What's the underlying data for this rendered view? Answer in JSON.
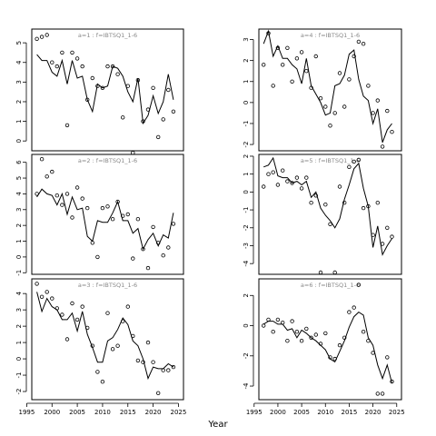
{
  "xlabel": "Year",
  "chart_data": [
    {
      "type": "line",
      "title": "a=1  :  f=IBTSQ1_1-6",
      "ylim": [
        -0.5,
        5.7
      ],
      "yticks": [
        0,
        1,
        2,
        3,
        4,
        5
      ],
      "xlim": [
        1996,
        2026
      ],
      "xticks": [
        1995,
        2000,
        2005,
        2010,
        2015,
        2020,
        2025
      ],
      "x": [
        1997,
        1998,
        1999,
        2000,
        2001,
        2002,
        2003,
        2004,
        2005,
        2006,
        2007,
        2008,
        2009,
        2010,
        2011,
        2012,
        2013,
        2014,
        2015,
        2016,
        2017,
        2018,
        2019,
        2020,
        2021,
        2022,
        2023,
        2024
      ],
      "line": [
        4.4,
        4.1,
        4.1,
        3.5,
        3.3,
        4.1,
        2.9,
        4.1,
        3.2,
        3.3,
        2.1,
        1.5,
        2.9,
        2.7,
        2.8,
        3.8,
        3.7,
        3.3,
        2.5,
        2.0,
        3.2,
        0.9,
        1.3,
        2.3,
        1.4,
        2.0,
        3.4,
        2.1
      ],
      "points": [
        5.2,
        5.3,
        5.4,
        4.0,
        3.8,
        4.5,
        0.8,
        4.5,
        4.2,
        3.8,
        2.1,
        3.2,
        2.8,
        2.7,
        3.8,
        3.8,
        3.4,
        1.2,
        2.8,
        -0.6,
        3.1,
        1.0,
        1.6,
        2.7,
        0.2,
        1.1,
        2.6,
        1.5
      ]
    },
    {
      "type": "line",
      "title": "a=4  :  f=IBTSQ1_1-6",
      "ylim": [
        -2.3,
        3.5
      ],
      "yticks": [
        -2,
        -1,
        0,
        1,
        2,
        3
      ],
      "xlim": [
        1996,
        2026
      ],
      "xticks": [
        1995,
        2000,
        2005,
        2010,
        2015,
        2020,
        2025
      ],
      "x": [
        1997,
        1998,
        1999,
        2000,
        2001,
        2002,
        2003,
        2004,
        2005,
        2006,
        2007,
        2008,
        2009,
        2010,
        2011,
        2012,
        2013,
        2014,
        2015,
        2016,
        2017,
        2018,
        2019,
        2020,
        2021,
        2022,
        2023,
        2024
      ],
      "line": [
        2.8,
        3.4,
        2.2,
        2.7,
        2.1,
        2.1,
        1.8,
        1.6,
        0.9,
        2.1,
        0.8,
        0.4,
        0.0,
        -0.6,
        -0.5,
        0.8,
        0.9,
        1.3,
        2.3,
        2.5,
        1.1,
        0.3,
        0.1,
        -1.0,
        -0.3,
        -1.9,
        -1.3,
        -1.0
      ],
      "points": [
        1.8,
        3.3,
        0.8,
        2.6,
        1.8,
        2.6,
        1.0,
        2.1,
        2.4,
        1.5,
        0.7,
        2.2,
        0.2,
        -0.2,
        -1.1,
        -0.5,
        1.4,
        -0.2,
        1.1,
        2.2,
        2.9,
        2.8,
        0.8,
        -0.5,
        0.1,
        -2.1,
        -0.4,
        -1.4
      ]
    },
    {
      "type": "line",
      "title": "a=2  :  f=IBTSQ1_1-6",
      "ylim": [
        -1.1,
        6.5
      ],
      "yticks": [
        -1,
        0,
        1,
        2,
        3,
        4,
        5,
        6
      ],
      "xlim": [
        1996,
        2026
      ],
      "xticks": [
        1995,
        2000,
        2005,
        2010,
        2015,
        2020,
        2025
      ],
      "x": [
        1997,
        1998,
        1999,
        2000,
        2001,
        2002,
        2003,
        2004,
        2005,
        2006,
        2007,
        2008,
        2009,
        2010,
        2011,
        2012,
        2013,
        2014,
        2015,
        2016,
        2017,
        2018,
        2019,
        2020,
        2021,
        2022,
        2023,
        2024
      ],
      "line": [
        3.8,
        4.3,
        4.0,
        3.9,
        3.3,
        4.0,
        2.7,
        3.8,
        3.0,
        3.1,
        1.3,
        1.0,
        2.3,
        2.2,
        2.2,
        2.8,
        3.5,
        2.3,
        2.3,
        1.5,
        1.8,
        0.5,
        1.1,
        1.5,
        0.7,
        1.4,
        1.2,
        2.8
      ],
      "points": [
        4.0,
        6.2,
        5.1,
        5.4,
        3.9,
        3.3,
        4.0,
        2.5,
        4.4,
        3.7,
        3.1,
        0.9,
        0.0,
        3.1,
        3.2,
        2.4,
        3.5,
        2.6,
        2.7,
        -0.1,
        2.4,
        0.5,
        -0.7,
        1.9,
        0.9,
        0.1,
        0.6,
        2.1
      ]
    },
    {
      "type": "line",
      "title": "a=5  :  f=IBTSQ1_1-6",
      "ylim": [
        -4.6,
        2.1
      ],
      "yticks": [
        -4,
        -3,
        -2,
        -1,
        0,
        1,
        2
      ],
      "xlim": [
        1996,
        2026
      ],
      "xticks": [
        1995,
        2000,
        2005,
        2010,
        2015,
        2020,
        2025
      ],
      "x": [
        1997,
        1998,
        1999,
        2000,
        2001,
        2002,
        2003,
        2004,
        2005,
        2006,
        2007,
        2008,
        2009,
        2010,
        2011,
        2012,
        2013,
        2014,
        2015,
        2016,
        2017,
        2018,
        2019,
        2020,
        2021,
        2022,
        2023,
        2024
      ],
      "line": [
        1.4,
        1.5,
        1.9,
        0.9,
        0.8,
        0.8,
        0.5,
        0.6,
        0.4,
        0.6,
        -0.3,
        0.0,
        -0.9,
        -1.3,
        -1.6,
        -2.0,
        -1.5,
        -0.4,
        0.4,
        1.3,
        1.6,
        0.2,
        -0.8,
        -3.1,
        -1.9,
        -3.5,
        -3.0,
        -2.6
      ],
      "points": [
        0.3,
        1.0,
        1.1,
        0.4,
        1.2,
        0.6,
        0.5,
        0.8,
        0.2,
        0.8,
        -0.6,
        -0.2,
        -4.5,
        -0.7,
        -1.8,
        -4.5,
        0.3,
        -0.6,
        1.4,
        1.7,
        1.8,
        -0.9,
        -0.8,
        -2.4,
        -0.6,
        -2.9,
        -2.0,
        -2.5
      ]
    },
    {
      "type": "line",
      "title": "a=3  :  f=IBTSQ1_1-6",
      "ylim": [
        -2.5,
        4.9
      ],
      "yticks": [
        -2,
        -1,
        0,
        1,
        2,
        3,
        4
      ],
      "xlim": [
        1996,
        2026
      ],
      "xticks": [
        1995,
        2000,
        2005,
        2010,
        2015,
        2020,
        2025
      ],
      "x": [
        1997,
        1998,
        1999,
        2000,
        2001,
        2002,
        2003,
        2004,
        2005,
        2006,
        2007,
        2008,
        2009,
        2010,
        2011,
        2012,
        2013,
        2014,
        2015,
        2016,
        2017,
        2018,
        2019,
        2020,
        2021,
        2022,
        2023,
        2024
      ],
      "line": [
        4.1,
        2.9,
        3.7,
        3.2,
        3.0,
        2.4,
        2.4,
        2.8,
        1.7,
        2.9,
        1.5,
        0.7,
        -0.2,
        -0.2,
        1.1,
        1.3,
        1.8,
        2.5,
        2.1,
        1.1,
        0.8,
        0.0,
        -1.2,
        -0.5,
        -0.6,
        -0.6,
        -0.3,
        -0.5
      ],
      "points": [
        4.6,
        3.8,
        4.1,
        3.7,
        3.1,
        2.7,
        1.2,
        3.4,
        2.4,
        3.2,
        1.9,
        0.8,
        -0.8,
        -1.4,
        2.8,
        0.6,
        0.8,
        2.3,
        3.2,
        1.4,
        -0.1,
        -0.2,
        1.0,
        -0.2,
        -2.1,
        -0.7,
        -0.7,
        -0.5
      ]
    },
    {
      "type": "line",
      "title": "a=6  :  f=IBTSQ1_1-6",
      "ylim": [
        -4.9,
        3.1
      ],
      "yticks": [
        -4,
        -2,
        0,
        2
      ],
      "xlim": [
        1996,
        2026
      ],
      "xticks": [
        1995,
        2000,
        2005,
        2010,
        2015,
        2020,
        2025
      ],
      "x": [
        1997,
        1998,
        1999,
        2000,
        2001,
        2002,
        2003,
        2004,
        2005,
        2006,
        2007,
        2008,
        2009,
        2010,
        2011,
        2012,
        2013,
        2014,
        2015,
        2016,
        2017,
        2018,
        2019,
        2020,
        2021,
        2022,
        2023,
        2024
      ],
      "line": [
        0.1,
        0.3,
        0.3,
        0.1,
        0.1,
        -0.3,
        -0.2,
        -0.8,
        -0.3,
        -0.5,
        -0.8,
        -1.0,
        -1.3,
        -1.6,
        -2.2,
        -2.4,
        -1.7,
        -1.0,
        -0.1,
        0.6,
        0.9,
        0.7,
        -0.8,
        -1.3,
        -2.6,
        -3.5,
        -2.6,
        -3.8
      ],
      "points": [
        0.0,
        0.4,
        -0.4,
        0.4,
        0.2,
        -1.0,
        0.3,
        -0.4,
        -1.0,
        -0.2,
        -0.8,
        -0.6,
        -1.2,
        -0.5,
        -2.1,
        -2.2,
        -1.3,
        -0.8,
        0.9,
        1.2,
        2.7,
        -0.4,
        -1.0,
        -1.8,
        -4.5,
        -4.5,
        -2.1,
        -3.7
      ]
    }
  ]
}
